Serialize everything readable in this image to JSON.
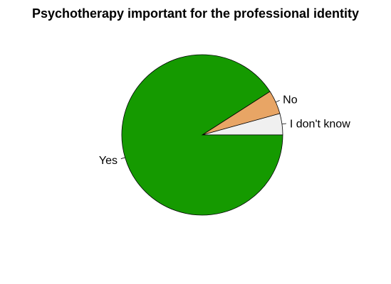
{
  "chart_data": {
    "type": "pie",
    "title": "Psychotherapy important for the professional identity",
    "slices": [
      {
        "label": "I don't know",
        "value": 4.3,
        "color": "#f0f0f0"
      },
      {
        "label": "No",
        "value": 4.8,
        "color": "#e8a565"
      },
      {
        "label": "Yes",
        "value": 90.9,
        "color": "#159a00"
      }
    ],
    "start_angle_deg": 0,
    "direction": "counterclockwise",
    "border_color": "#000000"
  }
}
